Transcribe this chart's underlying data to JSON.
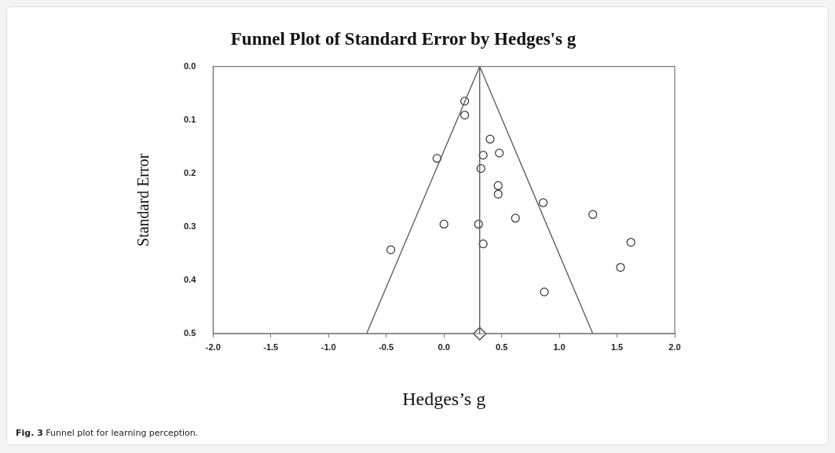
{
  "chart_data": {
    "type": "scatter",
    "title": "Funnel Plot of Standard Error by Hedges's g",
    "xlabel": "Hedges’s g",
    "ylabel": "Standard Error",
    "annotations": [
      "Fig. 3 Funnel plot for learning perception."
    ],
    "xlim": [
      -2.0,
      2.0
    ],
    "xticks": [
      {
        "value": -2,
        "label": "-2.0"
      },
      {
        "value": -1.5,
        "label": "-1.5"
      },
      {
        "value": -1,
        "label": "-1.0"
      },
      {
        "value": -0.5,
        "label": "-0.5"
      },
      {
        "value": 0,
        "label": "0.0"
      },
      {
        "value": 0.5,
        "label": "0.5"
      },
      {
        "value": 1,
        "label": "1.0"
      },
      {
        "value": 1.5,
        "label": "1.5"
      },
      {
        "value": 2,
        "label": "2.0"
      }
    ],
    "ylim": [
      0.5,
      0.0
    ],
    "yticks": [
      {
        "value": 0,
        "label": "0.0"
      },
      {
        "value": 0.1,
        "label": "0.1"
      },
      {
        "value": 0.2,
        "label": "0.2"
      },
      {
        "value": 0.3,
        "label": "0.3"
      },
      {
        "value": 0.4,
        "label": "0.4"
      },
      {
        "value": 0.5,
        "label": "0.5"
      }
    ],
    "grid": false,
    "legend": false,
    "series": [
      {
        "type": "line",
        "color": "#555555",
        "marker": "none",
        "x": [
          -0.67,
          0.31,
          1.29
        ],
        "values": [
          0.5,
          0.0,
          0.5
        ]
      },
      {
        "type": "line",
        "color": "#555555",
        "marker": "none",
        "x": [
          0.31,
          0.31
        ],
        "values": [
          0.0,
          0.5
        ]
      },
      {
        "type": "scatter",
        "color": "#333333",
        "marker": "circle",
        "x": [
          0.18,
          0.18,
          0.4,
          -0.06,
          0.34,
          0.48,
          0.32,
          0.47,
          0.47,
          0.86,
          0.0,
          0.3,
          0.62,
          0.34,
          -0.46,
          0.87,
          1.29,
          1.62,
          1.53
        ],
        "values": [
          0.065,
          0.091,
          0.136,
          0.172,
          0.166,
          0.162,
          0.191,
          0.223,
          0.239,
          0.255,
          0.295,
          0.295,
          0.284,
          0.332,
          0.343,
          0.422,
          0.277,
          0.329,
          0.376
        ]
      },
      {
        "type": "scatter",
        "color": "#333333",
        "marker": "diamond",
        "x": [
          0.31
        ],
        "values": [
          0.5
        ]
      }
    ]
  }
}
